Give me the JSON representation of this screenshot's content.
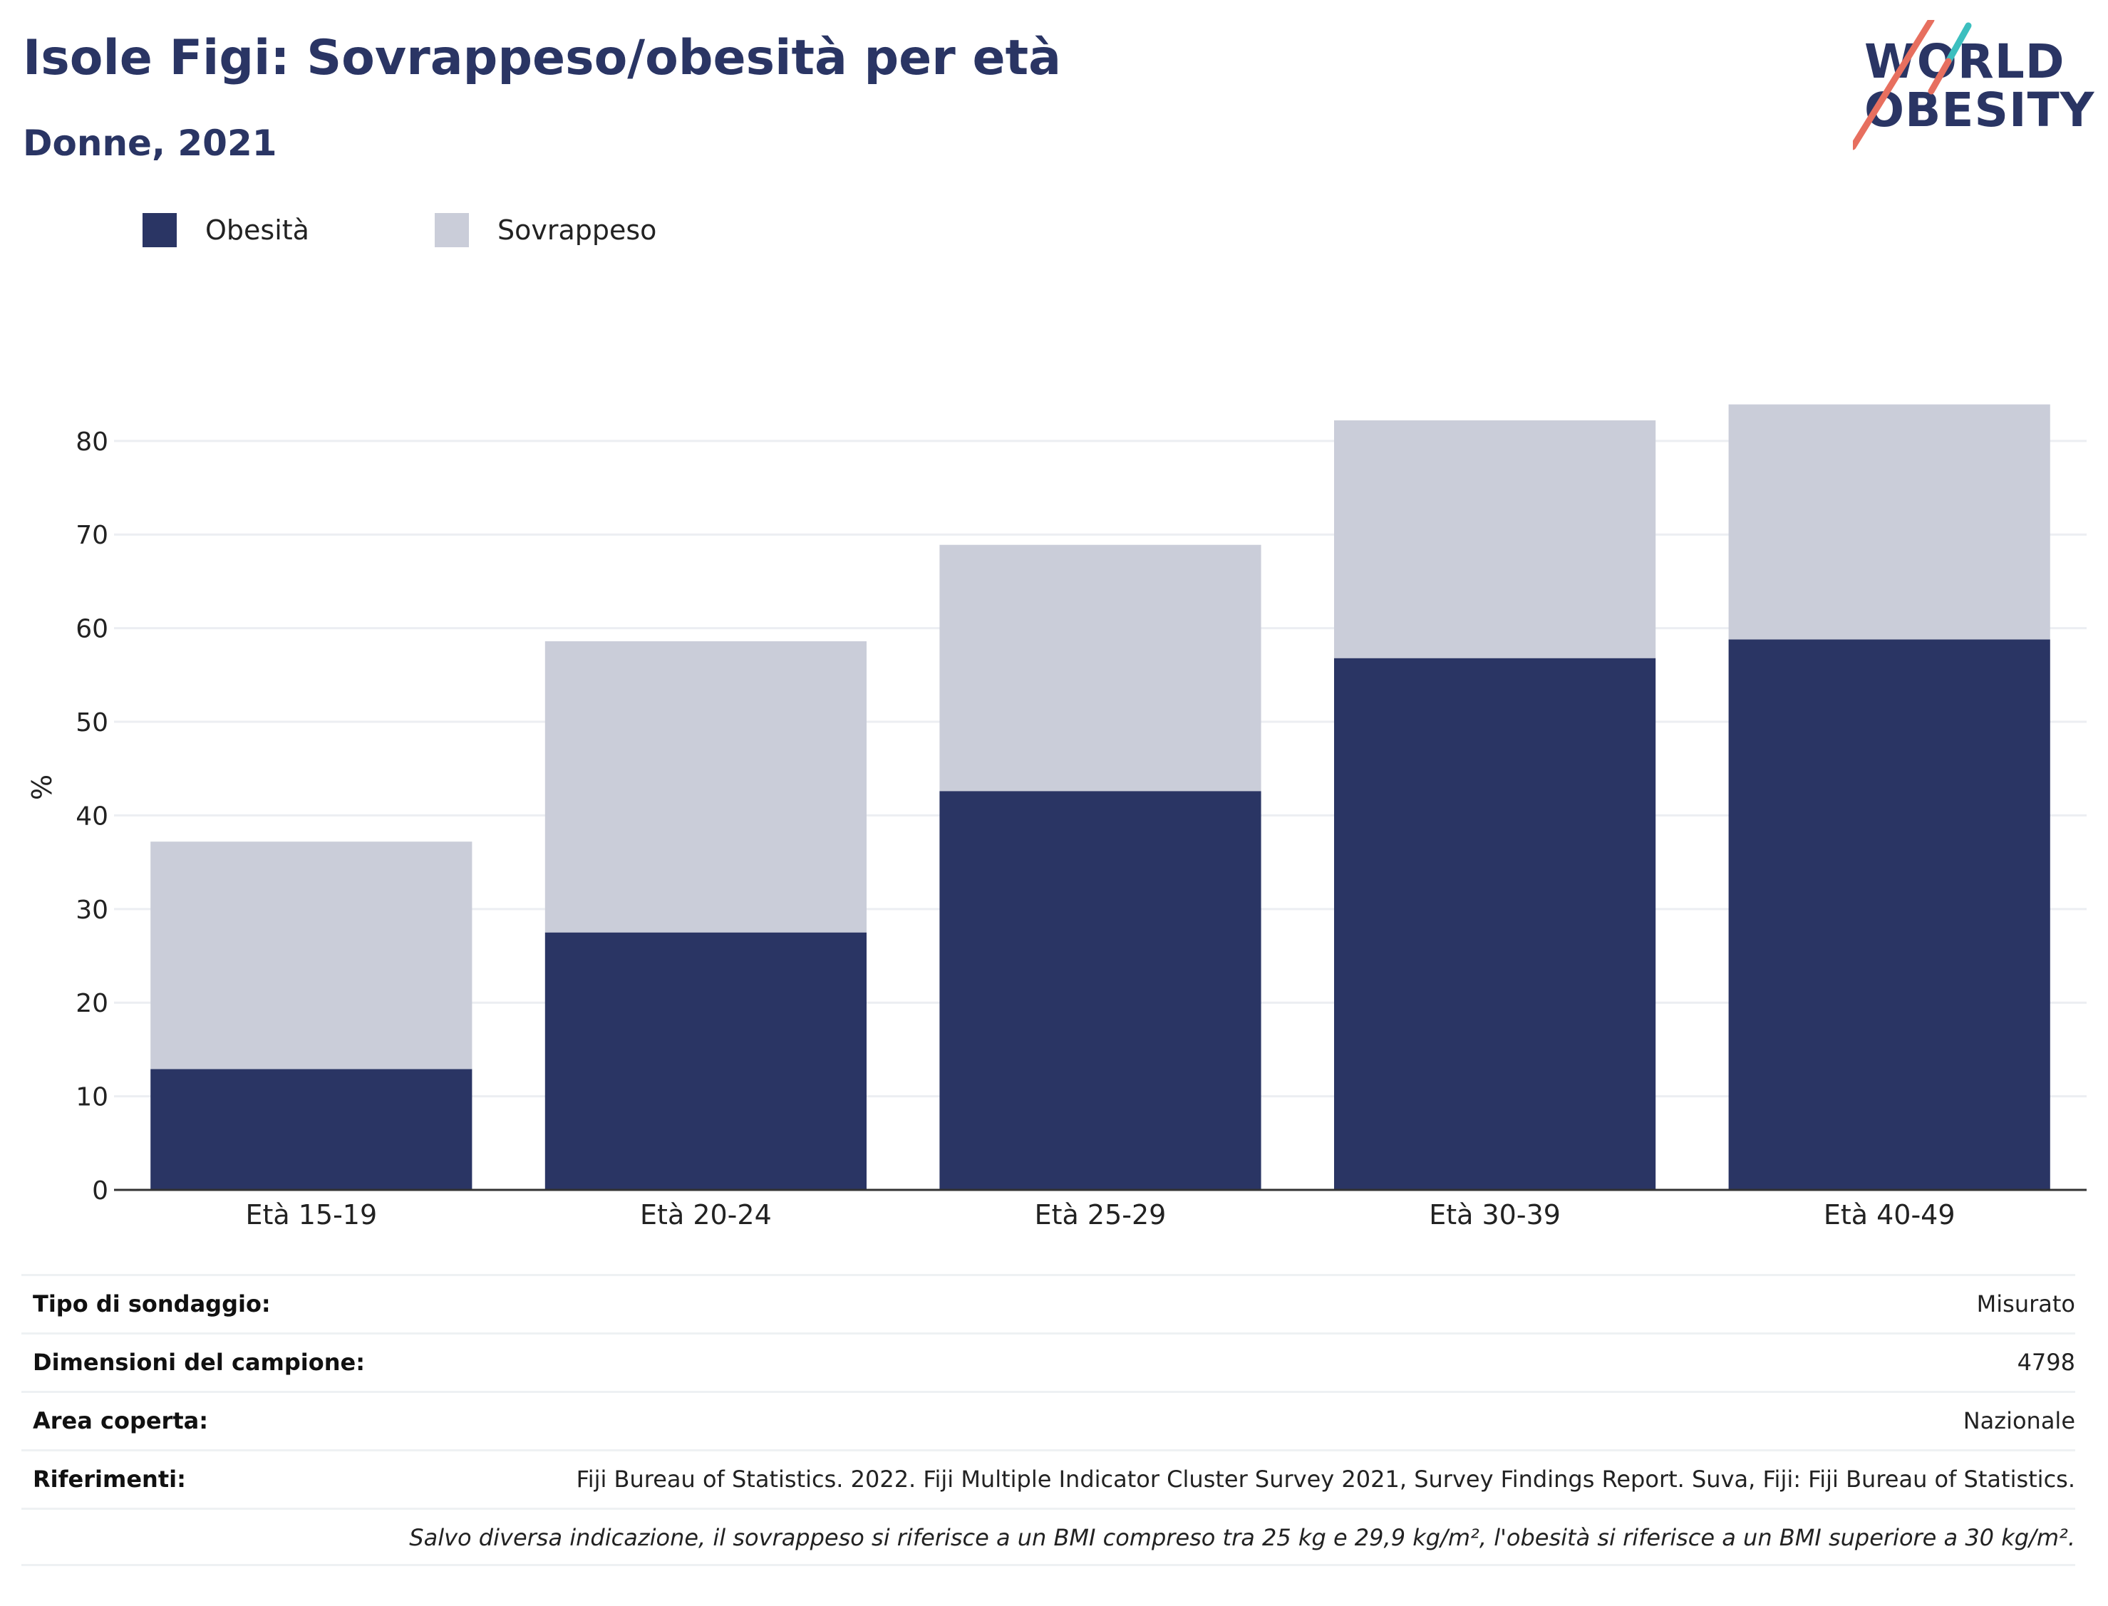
{
  "title": "Isole Figi: Sovrappeso/obesità per età",
  "subtitle": "Donne, 2021",
  "logo": {
    "line1": "WORLD",
    "line2": "OBESITY"
  },
  "colors": {
    "obesity": "#2a3564",
    "overweight": "#cacdd9",
    "text": "#2a3564",
    "grid": "#eceef2",
    "axis": "#333333",
    "logo_slash_red": "#e76f5f",
    "logo_slash_teal": "#3cbfbf"
  },
  "legend": [
    {
      "label": "Obesità",
      "color": "#2a3564"
    },
    {
      "label": "Sovrappeso",
      "color": "#cacdd9"
    }
  ],
  "chart_data": {
    "type": "bar",
    "stacked": true,
    "categories": [
      "Età 15-19",
      "Età 20-24",
      "Età 25-29",
      "Età 30-39",
      "Età 40-49"
    ],
    "series": [
      {
        "name": "Obesità",
        "values": [
          12.9,
          27.5,
          42.6,
          56.8,
          58.8
        ]
      },
      {
        "name": "Sovrappeso",
        "values": [
          24.3,
          31.1,
          26.3,
          25.4,
          25.1
        ]
      }
    ],
    "ylabel": "%",
    "ylim": [
      0,
      86
    ],
    "yticks": [
      0,
      10,
      20,
      30,
      40,
      50,
      60,
      70,
      80
    ],
    "grid": true,
    "legend_position": "top-left"
  },
  "metadata": [
    {
      "label": "Tipo di sondaggio:",
      "value": "Misurato"
    },
    {
      "label": "Dimensioni del campione:",
      "value": "4798"
    },
    {
      "label": "Area coperta:",
      "value": "Nazionale"
    },
    {
      "label": "Riferimenti:",
      "value": "Fiji Bureau of Statistics. 2022. Fiji Multiple Indicator Cluster Survey 2021, Survey Findings Report. Suva, Fiji: Fiji Bureau of Statistics."
    }
  ],
  "note": "Salvo diversa indicazione, il sovrappeso si riferisce a un BMI compreso tra 25 kg e 29,9 kg/m², l'obesità si riferisce a un BMI superiore a 30 kg/m²."
}
